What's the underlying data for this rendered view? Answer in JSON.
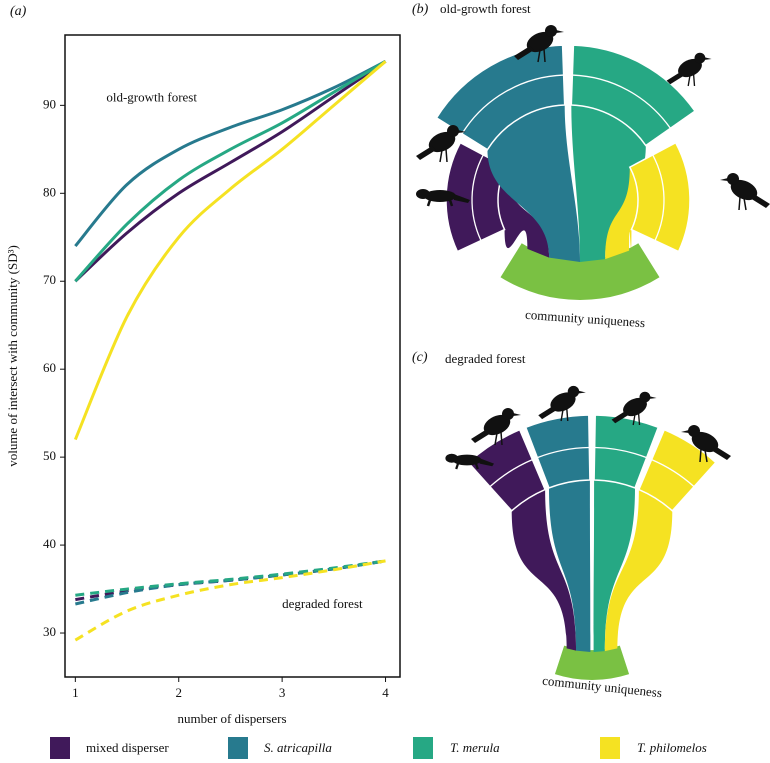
{
  "panel_labels": [
    "(a)",
    "(b)",
    "(c)"
  ],
  "chart_data": {
    "type": "line",
    "xlabel": "number of dispersers",
    "ylabel": "volume of intersect with community (SD³)",
    "annotations": [
      "old-growth forest",
      "degraded forest"
    ],
    "x": [
      1,
      1.5,
      2,
      2.5,
      3,
      3.5,
      4
    ],
    "xlim": [
      0.9,
      4.14
    ],
    "xticks": [
      1,
      2,
      3,
      4
    ],
    "ylim": [
      25,
      98
    ],
    "yticks": [
      30,
      40,
      50,
      60,
      70,
      80,
      90
    ],
    "series": [
      {
        "name": "mixed disperser",
        "color": "#40195a",
        "values": [
          70,
          75.5,
          80,
          83.5,
          87,
          91,
          95
        ],
        "degraded_values": [
          33.8,
          34.8,
          35.5,
          36,
          36.6,
          37.3,
          38.2
        ]
      },
      {
        "name": "S. atricapilla",
        "color": "#277a8e",
        "values": [
          74,
          81,
          85,
          87.5,
          89.5,
          92,
          95
        ],
        "degraded_values": [
          33.3,
          34.6,
          35.5,
          36,
          36.6,
          37.3,
          38.2
        ]
      },
      {
        "name": "T. merula",
        "color": "#26a884",
        "values": [
          70,
          76.5,
          81.5,
          85,
          88,
          91.5,
          95
        ],
        "degraded_values": [
          34.3,
          35,
          35.6,
          36.1,
          36.7,
          37.4,
          38.2
        ]
      },
      {
        "name": "T. philomelos",
        "color": "#f5e222",
        "values": [
          52,
          66,
          75,
          80.5,
          85,
          90,
          95
        ],
        "degraded_values": [
          29.2,
          32.5,
          34.3,
          35.5,
          36.3,
          37.2,
          38.2
        ]
      }
    ]
  },
  "diagrams": [
    {
      "title": "old-growth forest",
      "footer": "community uniqueness"
    },
    {
      "title": "degraded forest",
      "footer": "community uniqueness"
    }
  ]
}
